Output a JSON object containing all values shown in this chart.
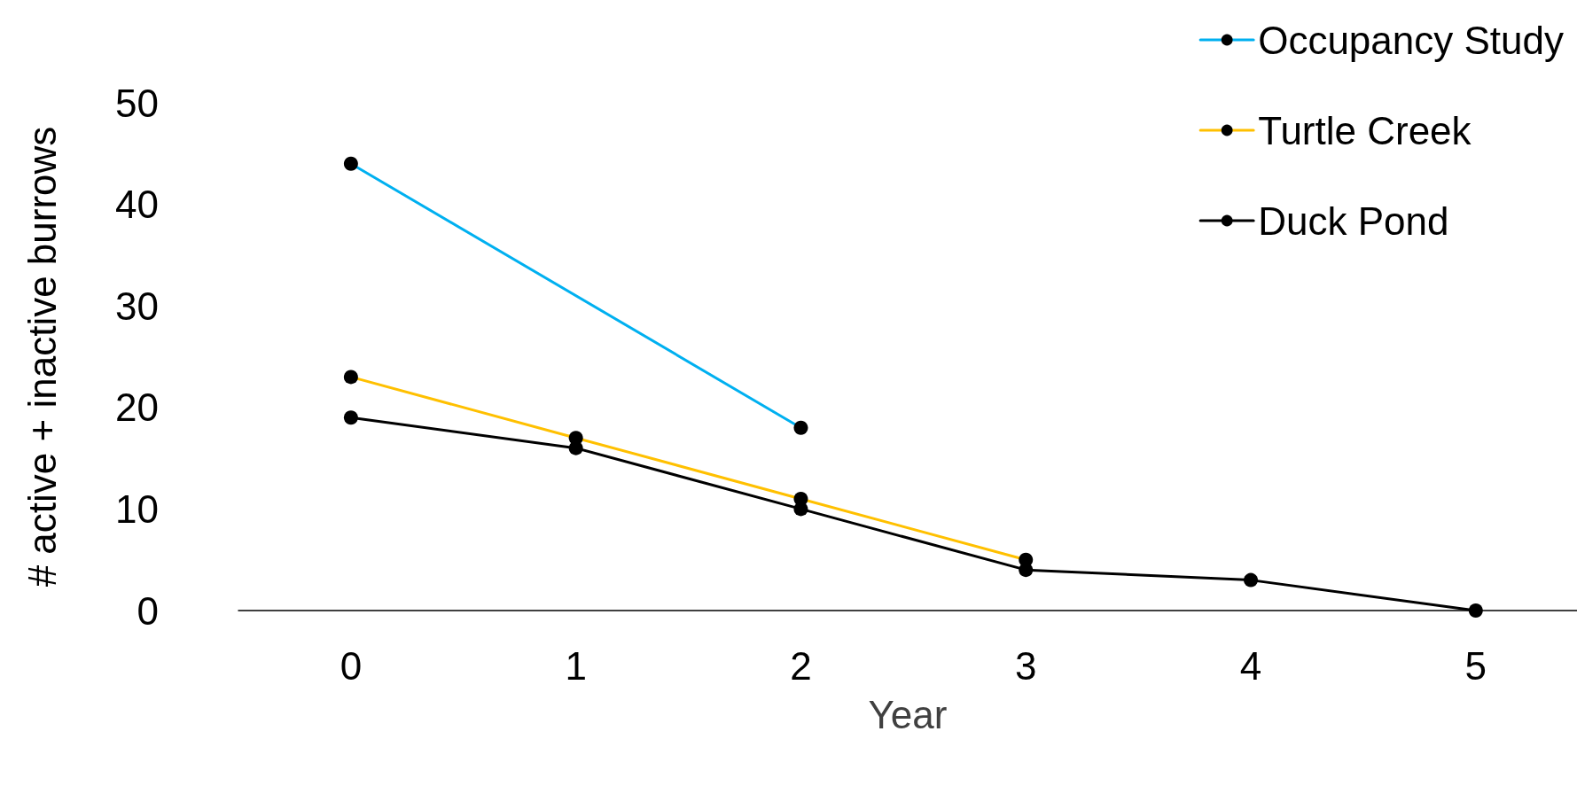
{
  "chart_data": {
    "type": "line",
    "xlabel": "Year",
    "ylabel": "# active + inactive burrows",
    "xlim": [
      -0.5,
      5.45
    ],
    "xticks": [
      0,
      1,
      2,
      3,
      4,
      5
    ],
    "ylim": [
      0,
      50
    ],
    "yticks": [
      0,
      10,
      20,
      30,
      40,
      50
    ],
    "grid": false,
    "legend": "top right",
    "marker": "circle",
    "line_style": "solid",
    "series": [
      {
        "name": "Occupancy Study",
        "color": "#00b0f0",
        "x": [
          0,
          2
        ],
        "values": [
          44,
          18
        ]
      },
      {
        "name": "Turtle Creek",
        "color": "#ffc000",
        "x": [
          0,
          1,
          2,
          3
        ],
        "values": [
          23,
          17,
          11,
          5
        ]
      },
      {
        "name": "Duck Pond",
        "color": "#000000",
        "x": [
          0,
          1,
          2,
          3,
          4,
          5
        ],
        "values": [
          19,
          16,
          10,
          4,
          3,
          0
        ]
      }
    ]
  }
}
